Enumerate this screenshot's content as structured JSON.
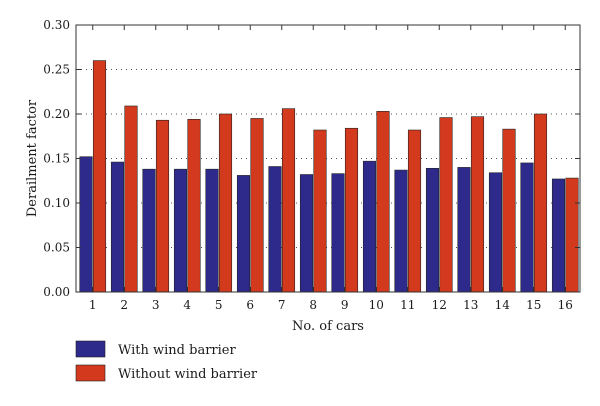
{
  "chart_data": {
    "type": "bar",
    "title": "",
    "xlabel": "No. of cars",
    "ylabel": "Derailment factor",
    "categories": [
      "1",
      "2",
      "3",
      "4",
      "5",
      "6",
      "7",
      "8",
      "9",
      "10",
      "11",
      "12",
      "13",
      "14",
      "15",
      "16"
    ],
    "series": [
      {
        "name": "With wind barrier",
        "color": "#2e2a8c",
        "values": [
          0.152,
          0.146,
          0.138,
          0.138,
          0.138,
          0.131,
          0.141,
          0.132,
          0.133,
          0.147,
          0.137,
          0.139,
          0.14,
          0.134,
          0.145,
          0.127
        ]
      },
      {
        "name": "Without wind barrier",
        "color": "#d33a1d",
        "values": [
          0.26,
          0.209,
          0.193,
          0.194,
          0.2,
          0.195,
          0.206,
          0.182,
          0.184,
          0.203,
          0.182,
          0.196,
          0.197,
          0.183,
          0.2,
          0.128
        ]
      }
    ],
    "ylim": [
      0,
      0.3
    ],
    "yticks": [
      "0.00",
      "0.05",
      "0.10",
      "0.15",
      "0.20",
      "0.25",
      "0.30"
    ],
    "grid": "horizontal dotted",
    "legend_position": "bottom-left"
  }
}
